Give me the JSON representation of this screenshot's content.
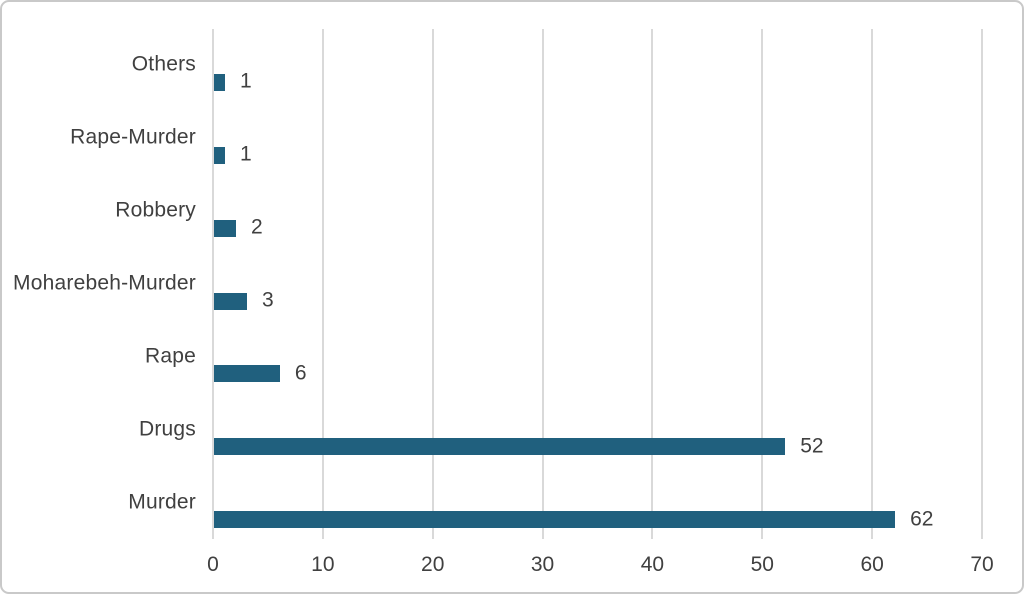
{
  "chart_data": {
    "type": "bar",
    "orientation": "horizontal",
    "title": "",
    "xlabel": "",
    "ylabel": "",
    "categories": [
      "Others",
      "Rape-Murder",
      "Robbery",
      "Moharebeh-Murder",
      "Rape",
      "Drugs",
      "Murder"
    ],
    "values": [
      1,
      1,
      2,
      3,
      6,
      52,
      62
    ],
    "data_labels": [
      "1",
      "1",
      "2",
      "3",
      "6",
      "52",
      "62"
    ],
    "x_ticks": [
      "0",
      "10",
      "20",
      "30",
      "40",
      "50",
      "60",
      "70"
    ],
    "xlim": [
      0,
      70
    ],
    "grid": "vertical-gridlines-on",
    "legend": "none",
    "colors": {
      "bar": "#20607E",
      "text": "#404040",
      "gridline": "#D9D9D9",
      "frame_border": "#C9C9C9",
      "background": "#FFFFFF"
    }
  }
}
